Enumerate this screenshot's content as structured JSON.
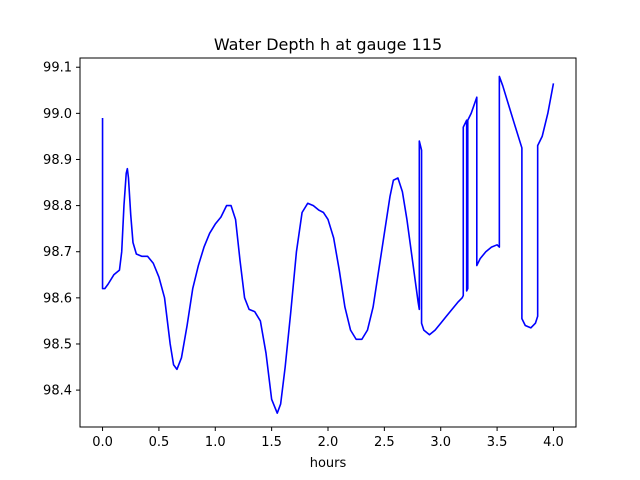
{
  "chart_data": {
    "type": "line",
    "title": "Water Depth h at gauge 115",
    "xlabel": "hours",
    "ylabel": "",
    "xlim": [
      -0.2,
      4.2
    ],
    "ylim": [
      98.32,
      99.12
    ],
    "xticks": [
      0.0,
      0.5,
      1.0,
      1.5,
      2.0,
      2.5,
      3.0,
      3.5,
      4.0
    ],
    "xtick_labels": [
      "0.0",
      "0.5",
      "1.0",
      "1.5",
      "2.0",
      "2.5",
      "3.0",
      "3.5",
      "4.0"
    ],
    "yticks": [
      98.4,
      98.5,
      98.6,
      98.7,
      98.8,
      98.9,
      99.0,
      99.1
    ],
    "ytick_labels": [
      "98.4",
      "98.5",
      "98.6",
      "98.7",
      "98.8",
      "98.9",
      "99.0",
      "99.1"
    ],
    "grid": false,
    "series": [
      {
        "color": "#0000ff",
        "x": [
          0.0,
          0.0,
          0.02,
          0.05,
          0.1,
          0.15,
          0.17,
          0.19,
          0.21,
          0.22,
          0.23,
          0.25,
          0.27,
          0.3,
          0.35,
          0.4,
          0.45,
          0.5,
          0.55,
          0.6,
          0.63,
          0.66,
          0.7,
          0.75,
          0.8,
          0.85,
          0.9,
          0.95,
          1.0,
          1.05,
          1.1,
          1.14,
          1.18,
          1.22,
          1.26,
          1.3,
          1.35,
          1.4,
          1.45,
          1.5,
          1.55,
          1.58,
          1.62,
          1.67,
          1.72,
          1.77,
          1.82,
          1.87,
          1.92,
          1.96,
          2.0,
          2.05,
          2.1,
          2.15,
          2.2,
          2.25,
          2.3,
          2.35,
          2.4,
          2.45,
          2.5,
          2.55,
          2.58,
          2.62,
          2.66,
          2.7,
          2.75,
          2.8,
          2.81,
          2.81,
          2.83,
          2.83,
          2.85,
          2.9,
          2.95,
          3.0,
          3.05,
          3.1,
          3.15,
          3.19,
          3.2,
          3.2,
          3.23,
          3.23,
          3.24,
          3.24,
          3.27,
          3.32,
          3.32,
          3.35,
          3.4,
          3.45,
          3.5,
          3.52,
          3.52,
          3.55,
          3.6,
          3.65,
          3.72,
          3.72,
          3.75,
          3.8,
          3.84,
          3.86,
          3.86,
          3.9,
          3.95,
          4.0
        ],
        "y": [
          98.99,
          98.62,
          98.62,
          98.63,
          98.65,
          98.66,
          98.7,
          98.8,
          98.87,
          98.88,
          98.86,
          98.78,
          98.72,
          98.695,
          98.69,
          98.69,
          98.675,
          98.645,
          98.6,
          98.5,
          98.455,
          98.445,
          98.47,
          98.54,
          98.62,
          98.67,
          98.71,
          98.74,
          98.76,
          98.775,
          98.8,
          98.8,
          98.77,
          98.68,
          98.6,
          98.575,
          98.57,
          98.55,
          98.48,
          98.38,
          98.35,
          98.37,
          98.45,
          98.57,
          98.7,
          98.785,
          98.805,
          98.8,
          98.79,
          98.785,
          98.77,
          98.73,
          98.66,
          98.58,
          98.53,
          98.51,
          98.51,
          98.53,
          98.58,
          98.66,
          98.74,
          98.82,
          98.855,
          98.86,
          98.83,
          98.77,
          98.68,
          98.59,
          98.575,
          98.94,
          98.92,
          98.545,
          98.53,
          98.52,
          98.53,
          98.545,
          98.56,
          98.575,
          98.59,
          98.6,
          98.605,
          98.97,
          98.985,
          98.615,
          98.62,
          98.985,
          99.0,
          99.035,
          98.67,
          98.685,
          98.7,
          98.71,
          98.715,
          98.71,
          99.08,
          99.06,
          99.02,
          98.98,
          98.925,
          98.555,
          98.54,
          98.535,
          98.545,
          98.56,
          98.93,
          98.95,
          99.0,
          99.065
        ]
      }
    ]
  }
}
